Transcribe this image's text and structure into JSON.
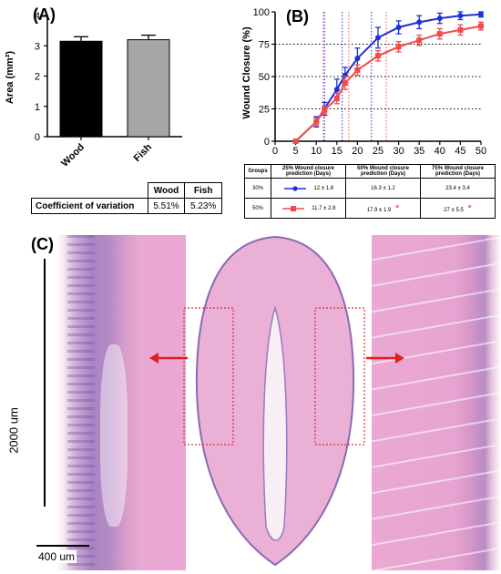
{
  "panelA": {
    "label": "(A)",
    "chart_data": {
      "type": "bar",
      "categories": [
        "Wood",
        "Fish"
      ],
      "values": [
        3.15,
        3.2
      ],
      "errors": [
        0.15,
        0.15
      ],
      "bar_colors": [
        "#000000",
        "#a6a6a6"
      ],
      "ylabel": "Area (mm²)",
      "ylim": [
        0,
        4
      ],
      "yticks": [
        "0",
        "1",
        "2",
        "3",
        "4"
      ]
    },
    "table": {
      "headers": [
        "",
        "Wood",
        "Fish"
      ],
      "row_label": "Coefficient of variation",
      "values": [
        "5.51%",
        "5.23%"
      ]
    }
  },
  "panelB": {
    "label": "(B)",
    "chart_data": {
      "type": "line",
      "ylabel": "Wound Closure (%)",
      "xlim": [
        0,
        50
      ],
      "ylim": [
        0,
        100
      ],
      "xticks": [
        "0",
        "5",
        "10",
        "15",
        "20",
        "25",
        "30",
        "35",
        "40",
        "45",
        "50"
      ],
      "yticks": [
        "0",
        "25",
        "50",
        "75",
        "100"
      ],
      "guide_lines_y": [
        25,
        50,
        75
      ],
      "series": [
        {
          "color": "#1f2fd6",
          "marker": "circle",
          "x": [
            5,
            10,
            12,
            15,
            17,
            20,
            25,
            30,
            35,
            40,
            45,
            50
          ],
          "y": [
            0,
            15,
            25,
            40,
            51,
            64,
            80,
            88,
            92,
            95,
            97,
            98
          ],
          "err": [
            0,
            4,
            5,
            8,
            6,
            8,
            8,
            5,
            5,
            4,
            3,
            2
          ],
          "vlines": [
            12,
            16.3,
            23.4
          ]
        },
        {
          "color": "#f04a4a",
          "marker": "square",
          "x": [
            5,
            10,
            12,
            15,
            17,
            20,
            25,
            30,
            35,
            40,
            45,
            50
          ],
          "y": [
            0,
            15,
            24,
            33,
            45,
            55,
            66,
            73,
            78,
            83,
            86,
            89
          ],
          "err": [
            0,
            3,
            3,
            4,
            5,
            4,
            4,
            4,
            4,
            4,
            4,
            3
          ],
          "vlines": [
            11.7,
            17.9,
            27
          ]
        }
      ]
    },
    "table": {
      "headers": [
        "Groups",
        "25% Wound closure prediction (Days)",
        "50% Wound closure prediction (Days)",
        "75% Wound closure prediction (Days)"
      ],
      "rows": [
        {
          "group": "30%",
          "v25": "12 ± 1.8",
          "v50": "16.3 ± 1.2",
          "v75": "23.4 ± 3.4",
          "mark50": "",
          "mark75": ""
        },
        {
          "group": "50%",
          "v25": "11.7 ± 2.8",
          "v50": "17.9 ± 1.9",
          "v75": "27 ± 5.5",
          "mark50": "*",
          "mark75": "*"
        }
      ]
    }
  },
  "panelC": {
    "label": "(C)",
    "scale_vertical": "2000 um",
    "scale_horizontal": "400 um",
    "colors": {
      "tissue": "#e8a6d0",
      "tissue_dark": "#7a5ea8",
      "arrow": "#e02020",
      "box": "#e03030"
    }
  }
}
